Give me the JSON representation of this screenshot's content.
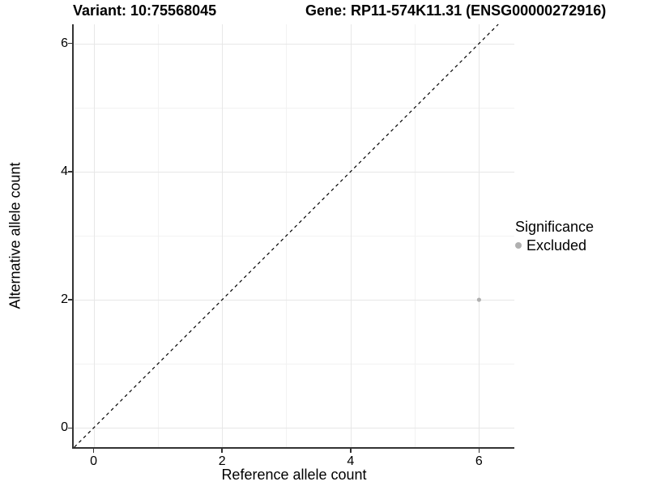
{
  "chart_data": {
    "type": "scatter",
    "title_left": "Variant: 10:75568045",
    "title_right": "Gene: RP11-574K11.31 (ENSG00000272916)",
    "xlabel": "Reference allele count",
    "ylabel": "Alternative allele count",
    "x_ticks": [
      0,
      2,
      4,
      6
    ],
    "x_tick_labels": [
      "0",
      "2",
      "4",
      "6"
    ],
    "x_minor_ticks": [
      1,
      3,
      5
    ],
    "y_ticks": [
      0,
      2,
      4,
      6
    ],
    "y_tick_labels": [
      "0",
      "2",
      "4",
      "6"
    ],
    "y_minor_ticks": [
      1,
      3,
      5
    ],
    "xlim": [
      -0.31,
      6.55
    ],
    "ylim": [
      -0.3,
      6.3
    ],
    "grid": "major+minor",
    "abline": {
      "slope": 1,
      "intercept": 0,
      "style": "dashed",
      "color": "#000000"
    },
    "series": [
      {
        "name": "Excluded",
        "color": "#b0b0b0",
        "points": [
          {
            "x": 6,
            "y": 2
          }
        ]
      }
    ],
    "legend": {
      "title": "Significance",
      "position": "right",
      "items": [
        {
          "label": "Excluded",
          "color": "#b0b0b0"
        }
      ]
    },
    "colors": {
      "grid_major": "#e7e7e7",
      "grid_minor": "#f2f2f2",
      "axis_line": "#333333",
      "text": "#000000"
    }
  }
}
